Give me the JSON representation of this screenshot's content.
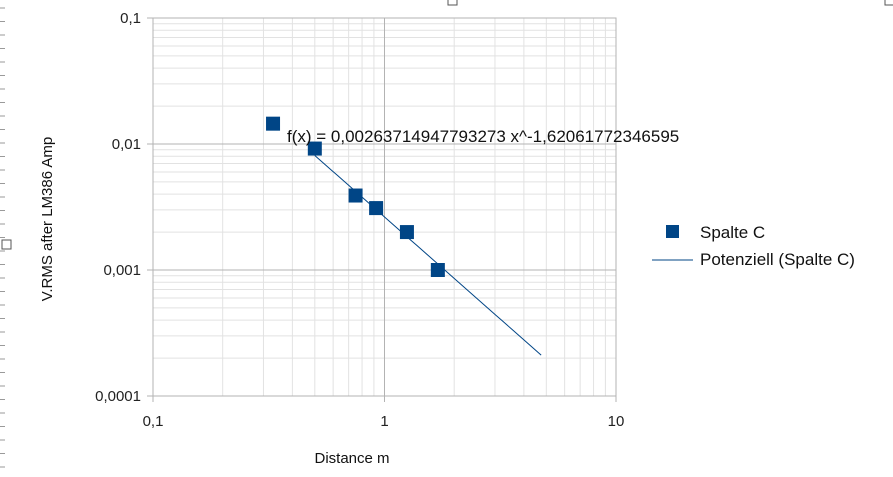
{
  "chart_data": {
    "type": "scatter",
    "xlabel": "Distance m",
    "ylabel": "V.RMS after LM386 Amp",
    "x_scale": "log",
    "y_scale": "log",
    "xlim": [
      0.1,
      10
    ],
    "ylim": [
      0.0001,
      0.1
    ],
    "x_ticks": [
      "0,1",
      "1",
      "10"
    ],
    "y_ticks": [
      "0,1",
      "0,01",
      "0,001",
      "0,0001"
    ],
    "grid": true,
    "legend_position": "right",
    "series": [
      {
        "name": "Spalte C",
        "marker": "square",
        "color": "#004586",
        "x": [
          0.33,
          0.5,
          0.75,
          0.92,
          1.25,
          1.7
        ],
        "y": [
          0.0145,
          0.0092,
          0.0039,
          0.0031,
          0.002,
          0.001
        ]
      }
    ],
    "trendline": {
      "name": "Potenziell (Spalte C)",
      "type": "power",
      "equation": "f(x) = 0,00263714947793273 x^-1,62061772346595",
      "a": 0.00263714947793273,
      "b": -1.62061772346595,
      "x_range": [
        0.5,
        4.75
      ],
      "color": "#004586"
    }
  }
}
